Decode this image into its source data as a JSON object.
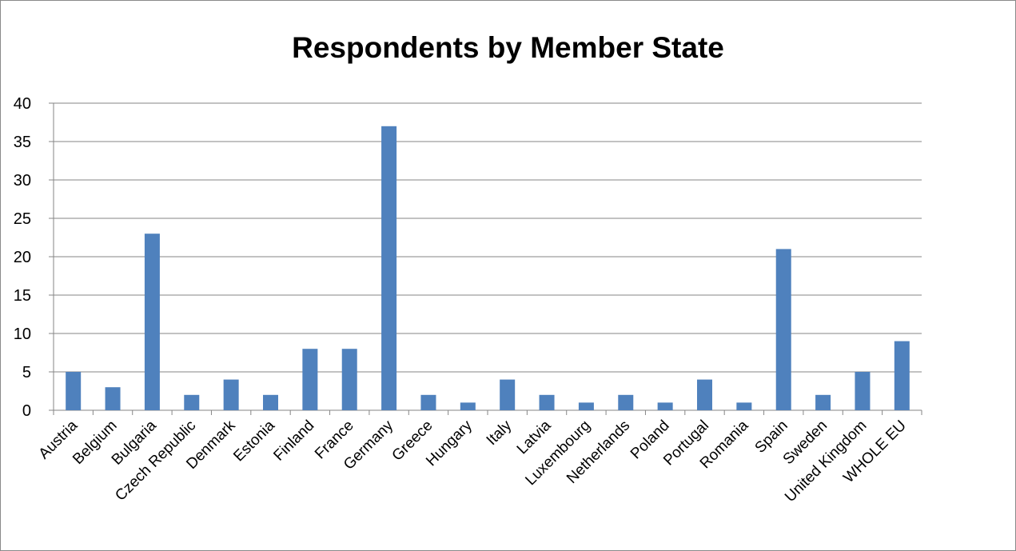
{
  "chart_data": {
    "type": "bar",
    "title": "Respondents by Member State",
    "xlabel": "",
    "ylabel": "",
    "ylim": [
      0,
      40
    ],
    "yticks": [
      0,
      5,
      10,
      15,
      20,
      25,
      30,
      35,
      40
    ],
    "grid": true,
    "legend": "none",
    "bar_color": "#4f81bd",
    "categories": [
      "Austria",
      "Belgium",
      "Bulgaria",
      "Czech Republic",
      "Denmark",
      "Estonia",
      "Finland",
      "France",
      "Germany",
      "Greece",
      "Hungary",
      "Italy",
      "Latvia",
      "Luxembourg",
      "Netherlands",
      "Poland",
      "Portugal",
      "Romania",
      "Spain",
      "Sweden",
      "United Kingdom",
      "WHOLE EU"
    ],
    "values": [
      5,
      3,
      23,
      2,
      4,
      2,
      8,
      8,
      37,
      2,
      1,
      4,
      2,
      1,
      2,
      1,
      4,
      1,
      21,
      2,
      5,
      9
    ]
  }
}
